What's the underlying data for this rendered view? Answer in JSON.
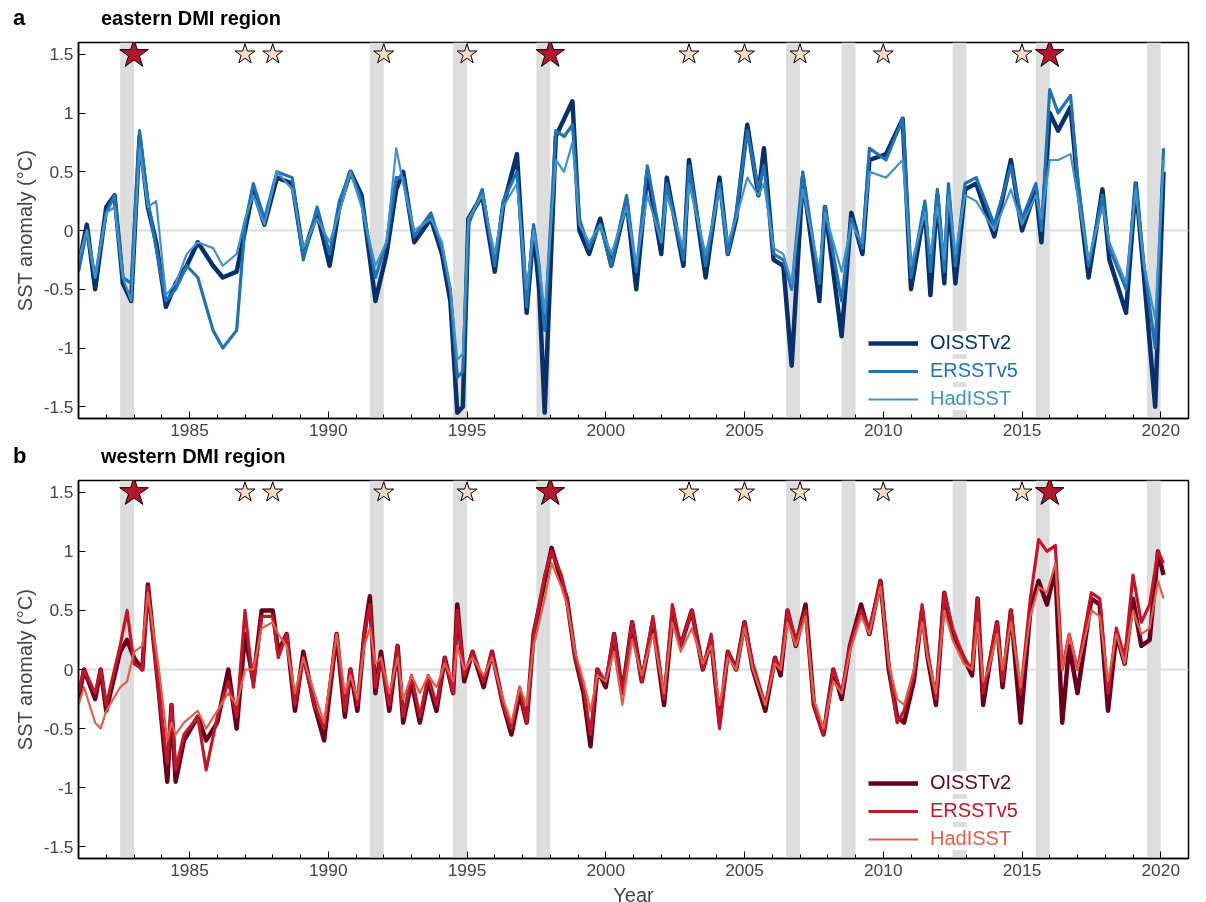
{
  "chart_data": [
    {
      "type": "line",
      "title": "eastern DMI region",
      "ylabel": "SST anomaly (°C)",
      "annotations": [
        "a"
      ],
      "legend": "bottom right",
      "grid": false,
      "line_style": "solid",
      "xlim": [
        1981,
        2021
      ],
      "ylim": [
        -1.6,
        1.6
      ],
      "xticks": [
        {
          "value": 1982,
          "label": null
        },
        {
          "value": 1983,
          "label": null
        },
        {
          "value": 1984,
          "label": null
        },
        1985,
        {
          "value": 1986,
          "label": null
        },
        {
          "value": 1987,
          "label": null
        },
        {
          "value": 1988,
          "label": null
        },
        {
          "value": 1989,
          "label": null
        },
        1990,
        {
          "value": 1991,
          "label": null
        },
        {
          "value": 1992,
          "label": null
        },
        {
          "value": 1993,
          "label": null
        },
        {
          "value": 1994,
          "label": null
        },
        1995,
        {
          "value": 1996,
          "label": null
        },
        {
          "value": 1997,
          "label": null
        },
        {
          "value": 1998,
          "label": null
        },
        {
          "value": 1999,
          "label": null
        },
        2000,
        {
          "value": 2001,
          "label": null
        },
        {
          "value": 2002,
          "label": null
        },
        {
          "value": 2003,
          "label": null
        },
        {
          "value": 2004,
          "label": null
        },
        2005,
        {
          "value": 2006,
          "label": null
        },
        {
          "value": 2007,
          "label": null
        },
        {
          "value": 2008,
          "label": null
        },
        {
          "value": 2009,
          "label": null
        },
        2010,
        {
          "value": 2011,
          "label": null
        },
        {
          "value": 2012,
          "label": null
        },
        {
          "value": 2013,
          "label": null
        },
        {
          "value": 2014,
          "label": null
        },
        2015,
        {
          "value": 2016,
          "label": null
        },
        {
          "value": 2017,
          "label": null
        },
        {
          "value": 2018,
          "label": null
        },
        {
          "value": 2019,
          "label": null
        },
        2020
      ],
      "yticks": [
        -1.5,
        -1,
        -0.5,
        0,
        0.5,
        1,
        1.5
      ],
      "ref_lines": [
        {
          "axis": "y",
          "value": 0,
          "color": "#dddddd"
        }
      ],
      "bands": [
        {
          "axis": "x",
          "from": 1982.5,
          "to": 1983,
          "color": "#dddddd"
        },
        {
          "axis": "x",
          "from": 1991.5,
          "to": 1992,
          "color": "#dddddd"
        },
        {
          "axis": "x",
          "from": 1994.5,
          "to": 1995,
          "color": "#dddddd"
        },
        {
          "axis": "x",
          "from": 1997.5,
          "to": 1998,
          "color": "#dddddd"
        },
        {
          "axis": "x",
          "from": 2006.5,
          "to": 2007,
          "color": "#dddddd"
        },
        {
          "axis": "x",
          "from": 2008.5,
          "to": 2009,
          "color": "#dddddd"
        },
        {
          "axis": "x",
          "from": 2012.5,
          "to": 2013,
          "color": "#dddddd"
        },
        {
          "axis": "x",
          "from": 2015.5,
          "to": 2016,
          "color": "#dddddd"
        },
        {
          "axis": "x",
          "from": 2019.5,
          "to": 2020,
          "color": "#dddddd"
        }
      ],
      "x": [
        1981.0,
        1981.3,
        1981.6,
        1982.0,
        1982.3,
        1982.6,
        1982.9,
        1983.2,
        1983.5,
        1983.8,
        1984.15,
        1984.5,
        1984.9,
        1985.3,
        1985.85,
        1986.2,
        1986.7,
        1987.0,
        1987.3,
        1987.7,
        1988.15,
        1988.7,
        1989.1,
        1989.6,
        1990.05,
        1990.4,
        1990.8,
        1991.2,
        1991.7,
        1992.1,
        1992.45,
        1992.7,
        1993.1,
        1993.7,
        1994.1,
        1994.4,
        1994.65,
        1994.85,
        1995.05,
        1995.55,
        1996.0,
        1996.3,
        1996.8,
        1997.15,
        1997.4,
        1997.6,
        1997.8,
        1998.2,
        1998.5,
        1998.8,
        1999.05,
        1999.4,
        1999.8,
        2000.2,
        2000.75,
        2001.1,
        2001.5,
        2002.0,
        2002.2,
        2002.8,
        2003.0,
        2003.6,
        2004.1,
        2004.4,
        2004.7,
        2005.1,
        2005.5,
        2005.7,
        2006.05,
        2006.4,
        2006.7,
        2007.1,
        2007.7,
        2007.9,
        2008.5,
        2008.85,
        2009.25,
        2009.5,
        2010.1,
        2010.7,
        2011.0,
        2011.5,
        2011.7,
        2011.95,
        2012.2,
        2012.35,
        2012.6,
        2012.95,
        2013.35,
        2014.0,
        2014.6,
        2015.0,
        2015.5,
        2015.7,
        2016.0,
        2016.3,
        2016.75,
        2017.0,
        2017.4,
        2017.9,
        2018.15,
        2018.75,
        2019.1,
        2019.4,
        2019.8,
        2020.1
      ],
      "series": [
        {
          "name": "OISSTv2",
          "color": "#08306b",
          "values": [
            -0.3,
            0.05,
            -0.5,
            0.2,
            0.3,
            -0.45,
            -0.6,
            0.8,
            0.2,
            -0.1,
            -0.65,
            -0.45,
            -0.3,
            -0.1,
            -0.3,
            -0.4,
            -0.35,
            0.0,
            0.35,
            0.05,
            0.45,
            0.4,
            -0.2,
            0.15,
            -0.3,
            0.2,
            0.5,
            0.3,
            -0.6,
            -0.2,
            0.35,
            0.5,
            -0.1,
            0.1,
            -0.2,
            -0.6,
            -1.55,
            -1.5,
            0.1,
            0.3,
            -0.35,
            0.2,
            0.65,
            -0.7,
            0.0,
            -0.5,
            -1.55,
            0.8,
            0.95,
            1.1,
            0.0,
            -0.2,
            0.1,
            -0.3,
            0.25,
            -0.5,
            0.5,
            -0.2,
            0.45,
            -0.3,
            0.6,
            -0.4,
            0.45,
            -0.2,
            0.1,
            0.9,
            0.3,
            0.7,
            -0.25,
            -0.3,
            -1.15,
            0.45,
            -0.6,
            0.2,
            -0.9,
            0.15,
            -0.2,
            0.6,
            0.65,
            0.95,
            -0.5,
            0.2,
            -0.55,
            0.3,
            -0.45,
            0.3,
            -0.45,
            0.35,
            0.4,
            -0.05,
            0.6,
            0.0,
            0.35,
            -0.1,
            1.0,
            0.85,
            1.05,
            0.4,
            -0.4,
            0.35,
            -0.25,
            -0.7,
            0.4,
            -0.4,
            -1.5,
            0.5
          ]
        },
        {
          "name": "ERSSTv5",
          "color": "#2171b5",
          "values": [
            -0.35,
            0.0,
            -0.4,
            0.15,
            0.3,
            -0.4,
            -0.45,
            0.85,
            0.25,
            -0.15,
            -0.6,
            -0.5,
            -0.3,
            -0.4,
            -0.85,
            -1.0,
            -0.85,
            0.05,
            0.4,
            0.1,
            0.5,
            0.45,
            -0.25,
            0.2,
            -0.2,
            0.25,
            0.5,
            0.25,
            -0.4,
            -0.1,
            0.45,
            0.45,
            -0.05,
            0.15,
            -0.15,
            -0.5,
            -1.25,
            -1.2,
            0.05,
            0.35,
            -0.3,
            0.25,
            0.5,
            -0.65,
            0.05,
            -0.3,
            -0.85,
            0.85,
            0.8,
            0.9,
            0.1,
            -0.15,
            0.05,
            -0.3,
            0.3,
            -0.35,
            0.55,
            -0.1,
            0.4,
            -0.25,
            0.55,
            -0.3,
            0.4,
            -0.2,
            0.15,
            0.85,
            0.35,
            0.55,
            -0.2,
            -0.25,
            -0.5,
            0.5,
            -0.45,
            0.2,
            -0.6,
            0.1,
            -0.15,
            0.7,
            0.6,
            0.95,
            -0.4,
            0.25,
            -0.35,
            0.35,
            -0.35,
            0.4,
            -0.3,
            0.4,
            0.45,
            0.05,
            0.55,
            0.1,
            0.4,
            0.0,
            1.2,
            1.0,
            1.15,
            0.45,
            -0.3,
            0.3,
            -0.15,
            -0.5,
            0.4,
            -0.3,
            -1.0,
            0.7
          ]
        },
        {
          "name": "HadISST",
          "color": "#4292c6",
          "values": [
            -0.25,
            0.0,
            -0.4,
            0.15,
            0.2,
            -0.4,
            -0.6,
            0.7,
            0.2,
            0.25,
            -0.55,
            -0.45,
            -0.2,
            -0.1,
            -0.15,
            -0.3,
            -0.2,
            0.1,
            0.3,
            0.05,
            0.5,
            0.35,
            -0.15,
            0.1,
            -0.1,
            0.15,
            0.5,
            0.2,
            -0.3,
            -0.1,
            0.7,
            0.4,
            0.0,
            0.1,
            -0.1,
            -0.5,
            -1.1,
            -1.05,
            0.1,
            0.3,
            -0.2,
            0.2,
            0.4,
            -0.5,
            0.0,
            -0.3,
            -0.7,
            0.6,
            0.5,
            0.75,
            0.05,
            -0.1,
            0.05,
            -0.2,
            0.2,
            -0.3,
            0.3,
            -0.1,
            0.3,
            -0.15,
            0.4,
            -0.2,
            0.35,
            -0.1,
            0.1,
            0.45,
            0.3,
            0.4,
            -0.15,
            -0.2,
            -0.45,
            0.35,
            -0.35,
            0.15,
            -0.35,
            0.05,
            -0.1,
            0.5,
            0.45,
            0.6,
            -0.3,
            0.15,
            -0.2,
            0.2,
            -0.25,
            0.3,
            -0.2,
            0.3,
            0.25,
            0.0,
            0.35,
            0.05,
            0.3,
            0.1,
            0.6,
            0.6,
            0.65,
            0.3,
            -0.25,
            0.2,
            -0.1,
            -0.45,
            0.35,
            -0.3,
            -0.75,
            0.6
          ]
        },
        {
          "type": "scatter",
          "marker": "star",
          "color": "#b2182b",
          "x": [
            1983,
            1998,
            2016
          ],
          "values": [
            1.5,
            1.5,
            1.5
          ]
        },
        {
          "type": "scatter",
          "marker": "star",
          "color": "#fddbc7",
          "x": [
            1987,
            1988,
            1992,
            1995,
            2003,
            2005,
            2007,
            2010,
            2015
          ],
          "values": [
            1.5,
            1.5,
            1.5,
            1.5,
            1.5,
            1.5,
            1.5,
            1.5,
            1.5
          ]
        }
      ]
    },
    {
      "type": "line",
      "title": "western DMI region",
      "xlabel": "Year",
      "ylabel": "SST anomaly (°C)",
      "annotations": [
        "b"
      ],
      "legend": "bottom right",
      "grid": false,
      "line_style": "solid",
      "xlim": [
        1981,
        2021
      ],
      "ylim": [
        -1.6,
        1.6
      ],
      "xticks": [
        {
          "value": 1982,
          "label": null
        },
        {
          "value": 1983,
          "label": null
        },
        {
          "value": 1984,
          "label": null
        },
        1985,
        {
          "value": 1986,
          "label": null
        },
        {
          "value": 1987,
          "label": null
        },
        {
          "value": 1988,
          "label": null
        },
        {
          "value": 1989,
          "label": null
        },
        1990,
        {
          "value": 1991,
          "label": null
        },
        {
          "value": 1992,
          "label": null
        },
        {
          "value": 1993,
          "label": null
        },
        {
          "value": 1994,
          "label": null
        },
        1995,
        {
          "value": 1996,
          "label": null
        },
        {
          "value": 1997,
          "label": null
        },
        {
          "value": 1998,
          "label": null
        },
        {
          "value": 1999,
          "label": null
        },
        2000,
        {
          "value": 2001,
          "label": null
        },
        {
          "value": 2002,
          "label": null
        },
        {
          "value": 2003,
          "label": null
        },
        {
          "value": 2004,
          "label": null
        },
        2005,
        {
          "value": 2006,
          "label": null
        },
        {
          "value": 2007,
          "label": null
        },
        {
          "value": 2008,
          "label": null
        },
        {
          "value": 2009,
          "label": null
        },
        2010,
        {
          "value": 2011,
          "label": null
        },
        {
          "value": 2012,
          "label": null
        },
        {
          "value": 2013,
          "label": null
        },
        {
          "value": 2014,
          "label": null
        },
        2015,
        {
          "value": 2016,
          "label": null
        },
        {
          "value": 2017,
          "label": null
        },
        {
          "value": 2018,
          "label": null
        },
        {
          "value": 2019,
          "label": null
        },
        2020
      ],
      "yticks": [
        -1.5,
        -1,
        -0.5,
        0,
        0.5,
        1,
        1.5
      ],
      "ref_lines": [
        {
          "axis": "y",
          "value": 0,
          "color": "#dddddd"
        }
      ],
      "bands": [
        {
          "axis": "x",
          "from": 1982.5,
          "to": 1983,
          "color": "#dddddd"
        },
        {
          "axis": "x",
          "from": 1991.5,
          "to": 1992,
          "color": "#dddddd"
        },
        {
          "axis": "x",
          "from": 1994.5,
          "to": 1995,
          "color": "#dddddd"
        },
        {
          "axis": "x",
          "from": 1997.5,
          "to": 1998,
          "color": "#dddddd"
        },
        {
          "axis": "x",
          "from": 2006.5,
          "to": 2007,
          "color": "#dddddd"
        },
        {
          "axis": "x",
          "from": 2008.5,
          "to": 2009,
          "color": "#dddddd"
        },
        {
          "axis": "x",
          "from": 2012.5,
          "to": 2013,
          "color": "#dddddd"
        },
        {
          "axis": "x",
          "from": 2015.5,
          "to": 2016,
          "color": "#dddddd"
        },
        {
          "axis": "x",
          "from": 2019.5,
          "to": 2020,
          "color": "#dddddd"
        }
      ],
      "x": [
        1981.0,
        1981.2,
        1981.6,
        1981.8,
        1982.0,
        1982.5,
        1982.75,
        1983.0,
        1983.3,
        1983.5,
        1983.9,
        1984.2,
        1984.35,
        1984.5,
        1984.8,
        1985.3,
        1985.6,
        1986.0,
        1986.4,
        1986.7,
        1987.0,
        1987.3,
        1987.6,
        1988.0,
        1988.2,
        1988.5,
        1988.8,
        1989.1,
        1989.5,
        1989.85,
        1990.3,
        1990.6,
        1990.8,
        1991.05,
        1991.3,
        1991.5,
        1991.7,
        1991.9,
        1992.2,
        1992.5,
        1992.7,
        1993.0,
        1993.3,
        1993.6,
        1993.9,
        1994.2,
        1994.5,
        1994.65,
        1994.9,
        1995.2,
        1995.6,
        1995.9,
        1996.3,
        1996.6,
        1996.9,
        1997.15,
        1997.4,
        1997.8,
        1998.05,
        1998.4,
        1998.6,
        1998.9,
        1999.2,
        1999.45,
        1999.7,
        2000.0,
        2000.3,
        2000.6,
        2000.95,
        2001.3,
        2001.7,
        2002.1,
        2002.4,
        2002.7,
        2003.1,
        2003.5,
        2003.8,
        2004.1,
        2004.4,
        2004.7,
        2005.0,
        2005.3,
        2005.75,
        2006.1,
        2006.3,
        2006.55,
        2006.85,
        2007.2,
        2007.5,
        2007.85,
        2008.2,
        2008.5,
        2008.8,
        2009.2,
        2009.5,
        2009.9,
        2010.2,
        2010.5,
        2010.75,
        2011.1,
        2011.4,
        2011.6,
        2011.9,
        2012.2,
        2012.5,
        2012.9,
        2013.2,
        2013.4,
        2013.6,
        2013.8,
        2014.1,
        2014.3,
        2014.6,
        2014.95,
        2015.3,
        2015.6,
        2015.9,
        2016.2,
        2016.45,
        2016.7,
        2017.0,
        2017.5,
        2017.8,
        2018.1,
        2018.4,
        2018.7,
        2019.0,
        2019.3,
        2019.6,
        2019.9,
        2020.1
      ],
      "series": [
        {
          "name": "OISSTv2",
          "color": "#67001f",
          "values": [
            -0.25,
            0.0,
            -0.25,
            0.0,
            -0.35,
            0.15,
            0.25,
            0.1,
            0.0,
            0.72,
            -0.2,
            -0.95,
            -0.3,
            -0.95,
            -0.6,
            -0.4,
            -0.6,
            -0.45,
            0.0,
            -0.5,
            0.3,
            -0.1,
            0.5,
            0.5,
            0.15,
            0.3,
            -0.35,
            0.15,
            -0.3,
            -0.6,
            0.3,
            -0.4,
            0.0,
            -0.35,
            0.3,
            0.62,
            -0.2,
            0.15,
            -0.35,
            0.2,
            -0.45,
            -0.1,
            -0.45,
            -0.1,
            -0.35,
            0.1,
            -0.2,
            0.55,
            -0.1,
            0.15,
            -0.15,
            0.15,
            -0.3,
            -0.55,
            -0.2,
            -0.45,
            0.3,
            0.75,
            1.03,
            0.75,
            0.6,
            0.1,
            -0.2,
            -0.65,
            0.0,
            -0.15,
            0.3,
            -0.2,
            0.4,
            -0.1,
            0.4,
            -0.3,
            0.45,
            0.2,
            0.5,
            0.0,
            0.25,
            -0.45,
            0.15,
            0.0,
            0.4,
            0.0,
            -0.35,
            0.1,
            -0.05,
            0.5,
            0.2,
            0.55,
            -0.3,
            -0.55,
            0.0,
            -0.25,
            0.2,
            0.55,
            0.3,
            0.75,
            0.0,
            -0.4,
            -0.45,
            -0.1,
            0.5,
            0.1,
            -0.3,
            0.65,
            0.3,
            0.1,
            -0.05,
            0.6,
            -0.3,
            0.0,
            0.4,
            -0.15,
            0.5,
            -0.45,
            0.5,
            0.75,
            0.55,
            0.85,
            -0.45,
            0.2,
            -0.2,
            0.6,
            0.55,
            -0.35,
            0.3,
            0.05,
            0.6,
            0.2,
            0.25,
            1.0,
            0.8
          ]
        },
        {
          "name": "ERSSTv5",
          "color": "#c0182a",
          "values": [
            -0.2,
            0.0,
            -0.2,
            0.0,
            -0.3,
            0.2,
            0.5,
            0.05,
            0.0,
            0.7,
            -0.2,
            -0.8,
            -0.3,
            -0.85,
            -0.55,
            -0.4,
            -0.85,
            -0.4,
            -0.1,
            -0.4,
            0.5,
            -0.15,
            0.45,
            0.45,
            0.1,
            0.3,
            -0.3,
            0.1,
            -0.3,
            -0.5,
            0.3,
            -0.35,
            0.0,
            -0.3,
            0.3,
            0.55,
            -0.15,
            0.1,
            -0.3,
            0.2,
            -0.4,
            -0.05,
            -0.4,
            -0.05,
            -0.3,
            0.1,
            -0.2,
            0.5,
            -0.05,
            0.15,
            -0.1,
            0.15,
            -0.3,
            -0.5,
            -0.15,
            -0.45,
            0.3,
            0.8,
            1.0,
            0.8,
            0.6,
            0.1,
            -0.15,
            -0.55,
            0.0,
            -0.1,
            0.3,
            -0.2,
            0.4,
            -0.1,
            0.45,
            -0.25,
            0.55,
            0.2,
            0.5,
            0.0,
            0.3,
            -0.5,
            0.15,
            0.0,
            0.4,
            0.05,
            -0.3,
            0.1,
            0.0,
            0.5,
            0.25,
            0.5,
            -0.3,
            -0.55,
            0.0,
            -0.2,
            0.2,
            0.5,
            0.35,
            0.75,
            0.05,
            -0.45,
            -0.35,
            -0.05,
            0.55,
            0.15,
            -0.25,
            0.65,
            0.35,
            0.1,
            0.0,
            0.6,
            -0.2,
            0.05,
            0.4,
            -0.1,
            0.5,
            -0.2,
            0.6,
            1.1,
            1.0,
            1.05,
            0.0,
            0.3,
            0.0,
            0.65,
            0.6,
            -0.2,
            0.35,
            0.1,
            0.8,
            0.4,
            0.55,
            1.0,
            0.9
          ]
        },
        {
          "name": "HadISST",
          "color": "#e0604d",
          "values": [
            -0.3,
            -0.15,
            -0.45,
            -0.5,
            -0.35,
            -0.15,
            -0.1,
            0.15,
            0.2,
            0.65,
            0.0,
            -0.6,
            -0.45,
            -0.55,
            -0.45,
            -0.35,
            -0.5,
            -0.35,
            -0.2,
            -0.3,
            0.0,
            0.0,
            0.35,
            0.4,
            0.3,
            0.2,
            -0.2,
            0.1,
            -0.2,
            -0.45,
            0.3,
            -0.2,
            -0.05,
            -0.25,
            0.2,
            0.35,
            0.05,
            0.1,
            -0.2,
            0.1,
            -0.25,
            -0.05,
            -0.2,
            -0.05,
            -0.15,
            0.05,
            -0.1,
            0.2,
            0.0,
            0.1,
            -0.05,
            0.1,
            -0.25,
            -0.45,
            -0.15,
            -0.3,
            0.2,
            0.6,
            0.9,
            0.7,
            0.55,
            0.15,
            -0.1,
            -0.35,
            -0.05,
            -0.1,
            0.15,
            -0.3,
            0.25,
            -0.05,
            0.3,
            -0.2,
            0.4,
            0.15,
            0.35,
            0.05,
            0.2,
            -0.3,
            0.1,
            0.0,
            0.35,
            0.0,
            -0.3,
            0.05,
            0.0,
            0.4,
            0.2,
            0.45,
            -0.25,
            -0.5,
            -0.1,
            -0.2,
            0.15,
            0.45,
            0.3,
            0.7,
            0.05,
            -0.25,
            -0.3,
            0.0,
            0.4,
            0.1,
            -0.2,
            0.5,
            0.25,
            0.05,
            0.0,
            0.4,
            -0.1,
            0.0,
            0.3,
            0.0,
            0.4,
            -0.15,
            0.45,
            0.7,
            0.65,
            0.9,
            0.0,
            0.3,
            0.0,
            0.5,
            0.45,
            -0.1,
            0.3,
            0.05,
            0.5,
            0.3,
            0.35,
            0.75,
            0.6
          ]
        },
        {
          "type": "scatter",
          "marker": "star",
          "color": "#b2182b",
          "x": [
            1983,
            1998,
            2016
          ],
          "values": [
            1.5,
            1.5,
            1.5
          ]
        },
        {
          "type": "scatter",
          "marker": "star",
          "color": "#fddbc7",
          "x": [
            1987,
            1988,
            1992,
            1995,
            2003,
            2005,
            2007,
            2010,
            2015
          ],
          "values": [
            1.5,
            1.5,
            1.5,
            1.5,
            1.5,
            1.5,
            1.5,
            1.5,
            1.5
          ]
        }
      ]
    }
  ]
}
